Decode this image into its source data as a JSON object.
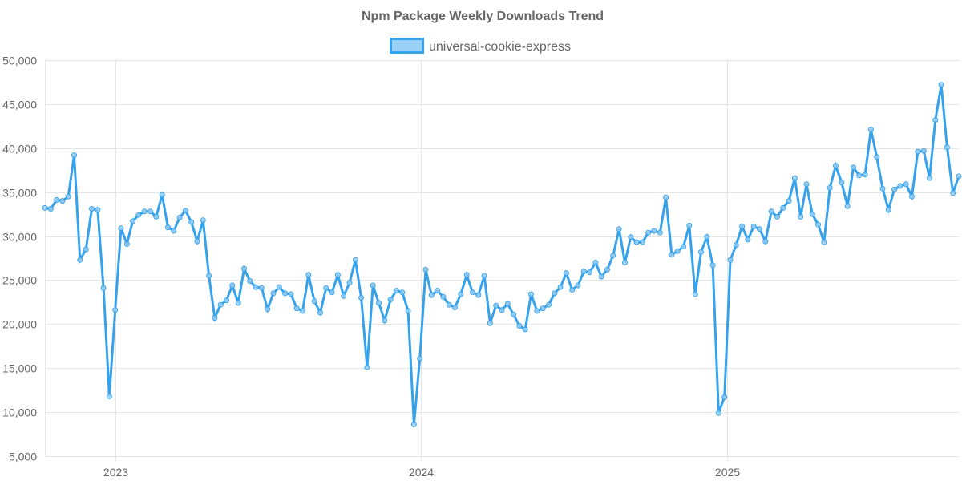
{
  "chart_data": {
    "type": "line",
    "title": "Npm Package Weekly Downloads Trend",
    "xlabel": "",
    "ylabel": "",
    "ylim": [
      5000,
      50000
    ],
    "y_ticks": [
      5000,
      10000,
      15000,
      20000,
      25000,
      30000,
      35000,
      40000,
      45000,
      50000
    ],
    "y_tick_labels": [
      "5,000",
      "10,000",
      "15,000",
      "20,000",
      "25,000",
      "30,000",
      "35,000",
      "40,000",
      "45,000",
      "50,000"
    ],
    "x_ticks": [
      {
        "label": "2023",
        "week_index": 12
      },
      {
        "label": "2024",
        "week_index": 64.2
      },
      {
        "label": "2025",
        "week_index": 116.4
      }
    ],
    "grid": true,
    "legend_position": "top-center",
    "series": [
      {
        "name": "universal-cookie-express",
        "color": "#36a2eb",
        "fill": "#9ad0f5",
        "values": [
          33200,
          33100,
          34100,
          34000,
          34500,
          39200,
          27300,
          28500,
          33100,
          33000,
          24100,
          11800,
          21600,
          30900,
          29100,
          31700,
          32400,
          32800,
          32800,
          32200,
          34700,
          31000,
          30600,
          32100,
          32900,
          31600,
          29400,
          31800,
          25500,
          20700,
          22200,
          22700,
          24400,
          22400,
          26300,
          24900,
          24200,
          24100,
          21700,
          23500,
          24200,
          23500,
          23400,
          21800,
          21500,
          25600,
          22600,
          21300,
          24100,
          23600,
          25600,
          23200,
          24700,
          27300,
          23000,
          15100,
          24400,
          22400,
          20400,
          22800,
          23800,
          23600,
          21500,
          8600,
          16100,
          26200,
          23300,
          23800,
          23100,
          22200,
          21900,
          23400,
          25600,
          23600,
          23300,
          25500,
          20100,
          22100,
          21600,
          22300,
          21100,
          19800,
          19400,
          23400,
          21500,
          21800,
          22200,
          23500,
          24200,
          25800,
          23900,
          24400,
          26000,
          25900,
          27000,
          25400,
          26200,
          27800,
          30800,
          27000,
          29900,
          29300,
          29300,
          30400,
          30600,
          30400,
          34400,
          27900,
          28300,
          28800,
          31200,
          23400,
          28200,
          29900,
          26700,
          9900,
          11700,
          27300,
          29000,
          31100,
          29600,
          31100,
          30800,
          29400,
          32800,
          32200,
          33200,
          34000,
          36600,
          32200,
          35900,
          32500,
          31300,
          29300,
          35500,
          38000,
          36100,
          33400,
          37800,
          36900,
          37000,
          42100,
          39000,
          35400,
          33000,
          35300,
          35700,
          35900,
          34500,
          39600,
          39700,
          36600,
          43200,
          47200,
          40100,
          34900,
          36800
        ]
      }
    ]
  }
}
